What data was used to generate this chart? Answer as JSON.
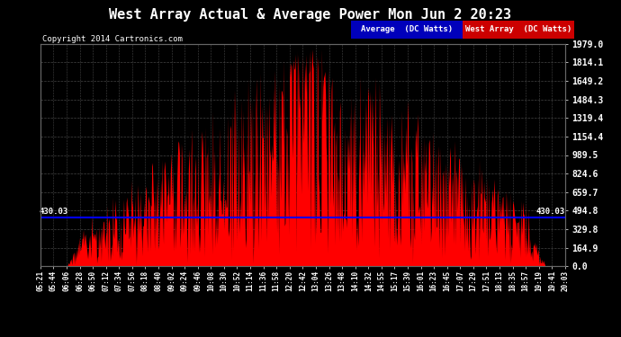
{
  "title": "West Array Actual & Average Power Mon Jun 2 20:23",
  "copyright": "Copyright 2014 Cartronics.com",
  "bg_color": "#000000",
  "plot_bg_color": "#000000",
  "grid_color": "#444444",
  "y_max": 1979.0,
  "y_min": 0.0,
  "y_ticks": [
    0.0,
    164.9,
    329.8,
    494.8,
    659.7,
    824.6,
    989.5,
    1154.4,
    1319.4,
    1484.3,
    1649.2,
    1814.1,
    1979.0
  ],
  "avg_line_value": 430.03,
  "avg_line_color": "#0000ff",
  "area_color": "#ff0000",
  "legend_avg_label": "Average  (DC Watts)",
  "legend_west_label": "West Array  (DC Watts)",
  "legend_avg_bg": "#0000bb",
  "legend_west_bg": "#cc0000",
  "x_tick_labels": [
    "05:21",
    "05:44",
    "06:06",
    "06:28",
    "06:50",
    "07:12",
    "07:34",
    "07:56",
    "08:18",
    "08:40",
    "09:02",
    "09:24",
    "09:46",
    "10:08",
    "10:30",
    "10:52",
    "11:14",
    "11:36",
    "11:58",
    "12:20",
    "12:42",
    "13:04",
    "13:26",
    "13:48",
    "14:10",
    "14:32",
    "14:55",
    "15:17",
    "15:39",
    "16:01",
    "16:23",
    "16:45",
    "17:07",
    "17:29",
    "17:51",
    "18:13",
    "18:35",
    "18:57",
    "19:19",
    "19:41",
    "20:03"
  ],
  "num_points": 41
}
